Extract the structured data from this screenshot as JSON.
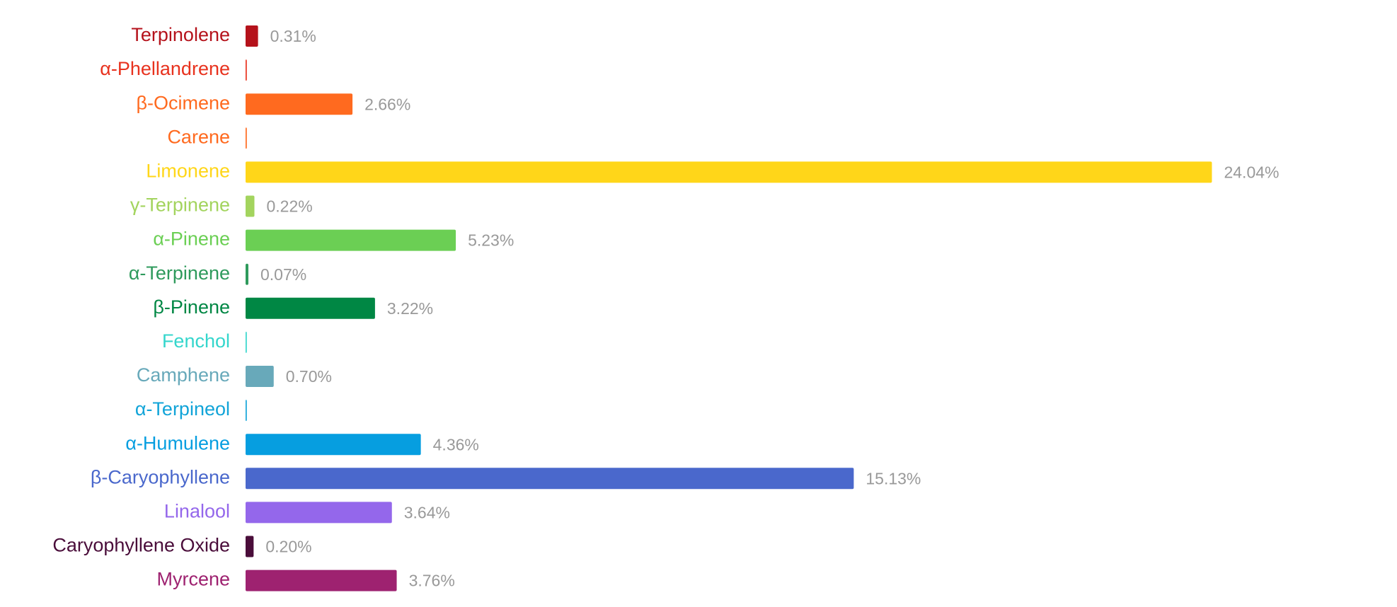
{
  "chart_data": {
    "type": "bar",
    "orientation": "horizontal",
    "categories": [
      "Terpinolene",
      "α-Phellandrene",
      "β-Ocimene",
      "Carene",
      "Limonene",
      "γ-Terpinene",
      "α-Pinene",
      "α-Terpinene",
      "β-Pinene",
      "Fenchol",
      "Camphene",
      "α-Terpineol",
      "α-Humulene",
      "β-Caryophyllene",
      "Linalool",
      "Caryophyllene Oxide",
      "Myrcene"
    ],
    "values": [
      0.31,
      0.03,
      2.66,
      0.03,
      24.04,
      0.22,
      5.23,
      0.07,
      3.22,
      0.03,
      0.7,
      0.03,
      4.36,
      15.13,
      3.64,
      0.2,
      3.76
    ],
    "value_labels": [
      "0.31%",
      null,
      "2.66%",
      null,
      "24.04%",
      "0.22%",
      "5.23%",
      "0.07%",
      "3.22%",
      null,
      "0.70%",
      null,
      "4.36%",
      "15.13%",
      "3.64%",
      "0.20%",
      "3.76%"
    ],
    "colors": [
      "#b5121b",
      "#e8321e",
      "#ff6a1f",
      "#ff6a1f",
      "#ffd619",
      "#a3d45e",
      "#6bcf54",
      "#2e9a5c",
      "#008744",
      "#34d6cc",
      "#68a9ba",
      "#12a4d8",
      "#069ee0",
      "#4a68cc",
      "#9467eb",
      "#4a0d3a",
      "#9e2270"
    ]
  }
}
